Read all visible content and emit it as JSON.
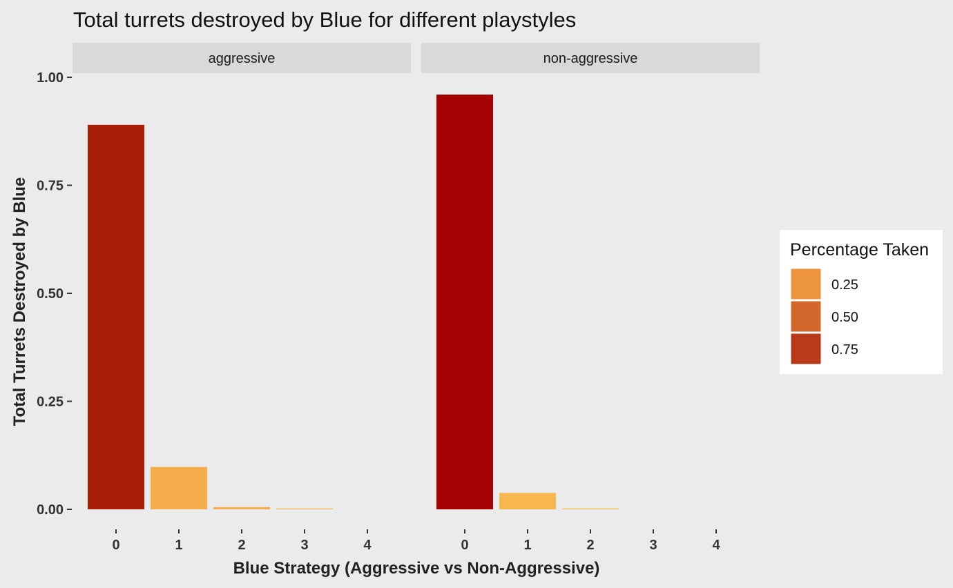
{
  "chart_data": {
    "type": "bar",
    "title": "Total turrets destroyed by Blue for different playstyles",
    "xlabel": "Blue Strategy (Aggressive vs Non-Aggressive)",
    "ylabel": "Total Turrets Destroyed by Blue",
    "ylim": [
      0,
      1.0
    ],
    "y_ticks": [
      "0.00",
      "0.25",
      "0.50",
      "0.75",
      "1.00"
    ],
    "y_tick_values": [
      0,
      0.25,
      0.5,
      0.75,
      1.0
    ],
    "categories": [
      "0",
      "1",
      "2",
      "3",
      "4"
    ],
    "grid": false,
    "legend_position": "right",
    "facets": [
      {
        "label": "aggressive",
        "values": [
          0.89,
          0.098,
          0.005,
          0.002,
          0.0
        ],
        "colors": [
          "#a81e06",
          "#f5ac4a",
          "#f5ac4a",
          "#f5ac4a",
          "#f5ac4a"
        ]
      },
      {
        "label": "non-aggressive",
        "values": [
          0.96,
          0.038,
          0.002,
          0.0,
          0.0
        ],
        "colors": [
          "#a50002",
          "#f7b74e",
          "#f7b74e",
          "#f7b74e",
          "#f7b74e"
        ]
      }
    ],
    "legend": {
      "title": "Percentage Taken",
      "items": [
        {
          "label": "0.25",
          "color": "#ec953e"
        },
        {
          "label": "0.50",
          "color": "#d4672b"
        },
        {
          "label": "0.75",
          "color": "#b93a18"
        }
      ]
    }
  }
}
